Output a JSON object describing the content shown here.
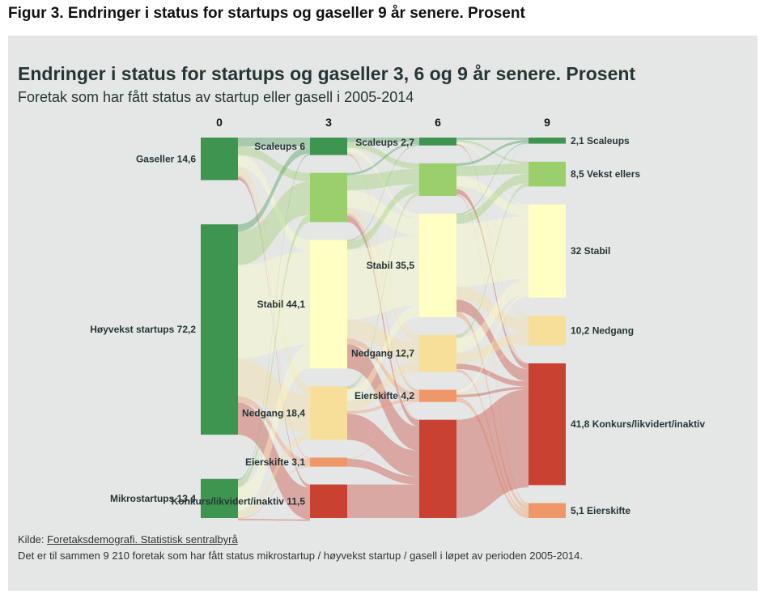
{
  "figure_title": "Figur 3. Endringer i status for startups og gaseller 9 år senere. Prosent",
  "source_prefix": "Kilde: ",
  "source_link": "Foretaksdemografi. Statistisk sentralbyrå",
  "note": "Det er til sammen 9 210 foretak som har fått status mikrostartup / høyvekst startup / gasell i løpet av perioden 2005-2014.",
  "colors": {
    "scaleups": "#3e9550",
    "vekst": "#9acf6b",
    "stabil": "#ffffc4",
    "nedgang": "#f7df9a",
    "eierskifte": "#ee9867",
    "konkurs": "#c84131",
    "panel": "#e5e7e7"
  },
  "chart_data": {
    "type": "sankey",
    "title": "Endringer i status for startups og gaseller 3, 6 og 9 år senere. Prosent",
    "subtitle": "Foretak som har fått status av startup eller gasell i 2005-2014",
    "columns": [
      "0",
      "3",
      "6",
      "9"
    ],
    "nodes": [
      [
        {
          "key": "gaseller",
          "label": "Gaseller 14,6",
          "value": 14.6,
          "category": "scaleups"
        },
        {
          "key": "hoyvekst",
          "label": "Høyvekst startups 72,2",
          "value": 72.2,
          "category": "scaleups"
        },
        {
          "key": "mikro",
          "label": "Mikrostartups 13,4",
          "value": 13.4,
          "category": "scaleups"
        }
      ],
      [
        {
          "key": "scaleups",
          "label": "Scaleups 6",
          "value": 6,
          "category": "scaleups"
        },
        {
          "key": "vekst",
          "label": "",
          "value": 16.9,
          "category": "vekst"
        },
        {
          "key": "stabil",
          "label": "Stabil 44,1",
          "value": 44.1,
          "category": "stabil"
        },
        {
          "key": "nedgang",
          "label": "Nedgang 18,4",
          "value": 18.4,
          "category": "nedgang"
        },
        {
          "key": "eierskifte",
          "label": "Eierskifte 3,1",
          "value": 3.1,
          "category": "eierskifte"
        },
        {
          "key": "konkurs",
          "label": "Konkurs/likvidert/inaktiv 11,5",
          "value": 11.5,
          "category": "konkurs"
        }
      ],
      [
        {
          "key": "scaleups",
          "label": "Scaleups 2,7",
          "value": 2.7,
          "category": "scaleups"
        },
        {
          "key": "vekst",
          "label": "",
          "value": 11.2,
          "category": "vekst"
        },
        {
          "key": "stabil",
          "label": "Stabil 35,5",
          "value": 35.5,
          "category": "stabil"
        },
        {
          "key": "nedgang",
          "label": "Nedgang 12,7",
          "value": 12.7,
          "category": "nedgang"
        },
        {
          "key": "eierskifte",
          "label": "Eierskifte 4,2",
          "value": 4.2,
          "category": "eierskifte"
        },
        {
          "key": "konkurs",
          "label": "",
          "value": 33.7,
          "category": "konkurs"
        }
      ],
      [
        {
          "key": "scaleups",
          "label": "2,1 Scaleups",
          "value": 2.1,
          "category": "scaleups"
        },
        {
          "key": "vekst",
          "label": "8,5 Vekst ellers",
          "value": 8.5,
          "category": "vekst"
        },
        {
          "key": "stabil",
          "label": "32 Stabil",
          "value": 32,
          "category": "stabil"
        },
        {
          "key": "nedgang",
          "label": "10,2 Nedgang",
          "value": 10.2,
          "category": "nedgang"
        },
        {
          "key": "konkurs",
          "label": "41,8 Konkurs/likvidert/inaktiv",
          "value": 41.8,
          "category": "konkurs"
        },
        {
          "key": "eierskifte",
          "label": "5,1 Eierskifte",
          "value": 5.1,
          "category": "eierskifte"
        }
      ]
    ],
    "links": [
      [
        [
          "gaseller",
          "scaleups",
          3.0
        ],
        [
          "gaseller",
          "vekst",
          3.0
        ],
        [
          "gaseller",
          "stabil",
          4.0
        ],
        [
          "gaseller",
          "nedgang",
          3.0
        ],
        [
          "gaseller",
          "eierskifte",
          0.6
        ],
        [
          "gaseller",
          "konkurs",
          1.0
        ],
        [
          "hoyvekst",
          "scaleups",
          2.5
        ],
        [
          "hoyvekst",
          "vekst",
          11.5
        ],
        [
          "hoyvekst",
          "stabil",
          32.0
        ],
        [
          "hoyvekst",
          "nedgang",
          13.0
        ],
        [
          "hoyvekst",
          "eierskifte",
          2.2
        ],
        [
          "hoyvekst",
          "konkurs",
          11.0
        ],
        [
          "mikro",
          "scaleups",
          0.5
        ],
        [
          "mikro",
          "vekst",
          2.4
        ],
        [
          "mikro",
          "stabil",
          8.1
        ],
        [
          "mikro",
          "nedgang",
          2.4
        ],
        [
          "mikro",
          "eierskifte",
          0.3
        ],
        [
          "mikro",
          "konkurs",
          0.5
        ]
      ],
      [
        [
          "scaleups",
          "scaleups",
          1.5
        ],
        [
          "scaleups",
          "vekst",
          2.0
        ],
        [
          "scaleups",
          "stabil",
          1.5
        ],
        [
          "scaleups",
          "nedgang",
          0.6
        ],
        [
          "scaleups",
          "eierskifte",
          0.2
        ],
        [
          "scaleups",
          "konkurs",
          0.2
        ],
        [
          "vekst",
          "scaleups",
          0.8
        ],
        [
          "vekst",
          "vekst",
          5.2
        ],
        [
          "vekst",
          "stabil",
          6.0
        ],
        [
          "vekst",
          "nedgang",
          2.0
        ],
        [
          "vekst",
          "eierskifte",
          0.8
        ],
        [
          "vekst",
          "konkurs",
          2.1
        ],
        [
          "stabil",
          "scaleups",
          0.3
        ],
        [
          "stabil",
          "vekst",
          3.0
        ],
        [
          "stabil",
          "stabil",
          24.0
        ],
        [
          "stabil",
          "nedgang",
          6.5
        ],
        [
          "stabil",
          "eierskifte",
          2.0
        ],
        [
          "stabil",
          "konkurs",
          8.3
        ],
        [
          "nedgang",
          "scaleups",
          0.1
        ],
        [
          "nedgang",
          "vekst",
          1.0
        ],
        [
          "nedgang",
          "stabil",
          3.9
        ],
        [
          "nedgang",
          "nedgang",
          3.5
        ],
        [
          "nedgang",
          "eierskifte",
          1.0
        ],
        [
          "nedgang",
          "konkurs",
          8.9
        ],
        [
          "eierskifte",
          "vekst",
          0.0
        ],
        [
          "eierskifte",
          "stabil",
          0.1
        ],
        [
          "eierskifte",
          "nedgang",
          0.1
        ],
        [
          "eierskifte",
          "eierskifte",
          0.2
        ],
        [
          "eierskifte",
          "konkurs",
          2.7
        ],
        [
          "konkurs",
          "konkurs",
          11.5
        ]
      ],
      [
        [
          "scaleups",
          "scaleups",
          0.8
        ],
        [
          "scaleups",
          "vekst",
          0.7
        ],
        [
          "scaleups",
          "stabil",
          0.6
        ],
        [
          "scaleups",
          "nedgang",
          0.2
        ],
        [
          "scaleups",
          "konkurs",
          0.3
        ],
        [
          "scaleups",
          "eierskifte",
          0.1
        ],
        [
          "vekst",
          "scaleups",
          0.9
        ],
        [
          "vekst",
          "vekst",
          3.5
        ],
        [
          "vekst",
          "stabil",
          3.5
        ],
        [
          "vekst",
          "nedgang",
          1.0
        ],
        [
          "vekst",
          "konkurs",
          1.7
        ],
        [
          "vekst",
          "eierskifte",
          0.6
        ],
        [
          "stabil",
          "scaleups",
          0.3
        ],
        [
          "stabil",
          "vekst",
          3.2
        ],
        [
          "stabil",
          "stabil",
          21.5
        ],
        [
          "stabil",
          "nedgang",
          4.5
        ],
        [
          "stabil",
          "konkurs",
          4.2
        ],
        [
          "stabil",
          "eierskifte",
          1.8
        ],
        [
          "nedgang",
          "scaleups",
          0.1
        ],
        [
          "nedgang",
          "vekst",
          1.0
        ],
        [
          "nedgang",
          "stabil",
          5.0
        ],
        [
          "nedgang",
          "nedgang",
          3.8
        ],
        [
          "nedgang",
          "konkurs",
          1.8
        ],
        [
          "nedgang",
          "eierskifte",
          1.0
        ],
        [
          "eierskifte",
          "vekst",
          0.1
        ],
        [
          "eierskifte",
          "stabil",
          1.0
        ],
        [
          "eierskifte",
          "nedgang",
          0.6
        ],
        [
          "eierskifte",
          "konkurs",
          0.9
        ],
        [
          "eierskifte",
          "eierskifte",
          1.6
        ],
        [
          "konkurs",
          "konkurs",
          33.7
        ]
      ]
    ]
  }
}
